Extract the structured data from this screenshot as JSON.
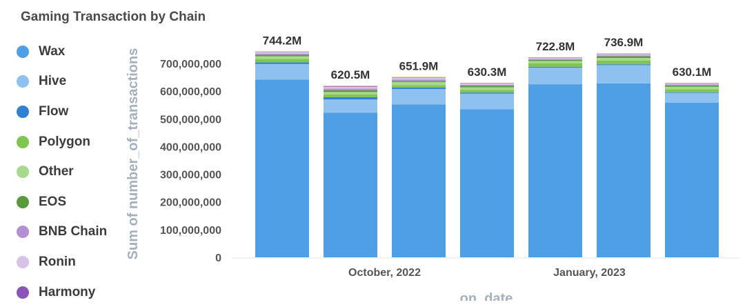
{
  "chart_data": {
    "type": "bar",
    "stacked": true,
    "title": "Gaming Transaction by Chain",
    "xlabel": "on_date",
    "ylabel": "Sum of number_of_transactions",
    "ylim": [
      0,
      760000000
    ],
    "yticks": [
      {
        "value": 0,
        "label": "0"
      },
      {
        "value": 100000000,
        "label": "100,000,000"
      },
      {
        "value": 200000000,
        "label": "200,000,000"
      },
      {
        "value": 300000000,
        "label": "300,000,000"
      },
      {
        "value": 400000000,
        "label": "400,000,000"
      },
      {
        "value": 500000000,
        "label": "500,000,000"
      },
      {
        "value": 600000000,
        "label": "600,000,000"
      },
      {
        "value": 700000000,
        "label": "700,000,000"
      }
    ],
    "xtick_labels": [
      {
        "after_bar": 2,
        "label": "October, 2022"
      },
      {
        "after_bar": 5,
        "label": "January, 2023"
      }
    ],
    "totals_labels": [
      "744.2M",
      "620.5M",
      "651.9M",
      "630.3M",
      "722.8M",
      "736.9M",
      "630.1M"
    ],
    "legend_position": "left",
    "grid": false,
    "series": [
      {
        "name": "Wax",
        "color": "#4f9fe6",
        "values": [
          642000000,
          522000000,
          552000000,
          535000000,
          625000000,
          628000000,
          558000000
        ]
      },
      {
        "name": "Hive",
        "color": "#8ec1f0",
        "values": [
          56000000,
          48000000,
          56000000,
          56000000,
          60000000,
          66000000,
          36000000
        ]
      },
      {
        "name": "Flow",
        "color": "#2f7fd3",
        "values": [
          6000000,
          8000000,
          5000000,
          4000000,
          3000000,
          3000000,
          2000000
        ]
      },
      {
        "name": "Polygon",
        "color": "#7fc550",
        "values": [
          12000000,
          10000000,
          9000000,
          10000000,
          12000000,
          13000000,
          11000000
        ]
      },
      {
        "name": "Other",
        "color": "#a6d98c",
        "values": [
          10000000,
          9000000,
          11000000,
          9000000,
          9000000,
          10000000,
          9000000
        ]
      },
      {
        "name": "EOS",
        "color": "#5a9a3e",
        "values": [
          5000000,
          6000000,
          4000000,
          5000000,
          4000000,
          6000000,
          5000000
        ]
      },
      {
        "name": "BNB Chain",
        "color": "#b48fd1",
        "values": [
          4000000,
          6000000,
          5000000,
          4000000,
          3000000,
          3000000,
          3000000
        ]
      },
      {
        "name": "Ronin",
        "color": "#d8c3e8",
        "values": [
          6000000,
          7000000,
          6000000,
          5000000,
          4000000,
          5000000,
          4000000
        ]
      },
      {
        "name": "Harmony",
        "color": "#8a54b8",
        "values": [
          1000000,
          2000000,
          1500000,
          1300000,
          1000000,
          1500000,
          1000000
        ]
      },
      {
        "name": "",
        "color": "#f0c476",
        "values": [
          2200000,
          2500000,
          2400000,
          1000000,
          1800000,
          1400000,
          1100000
        ]
      }
    ]
  }
}
